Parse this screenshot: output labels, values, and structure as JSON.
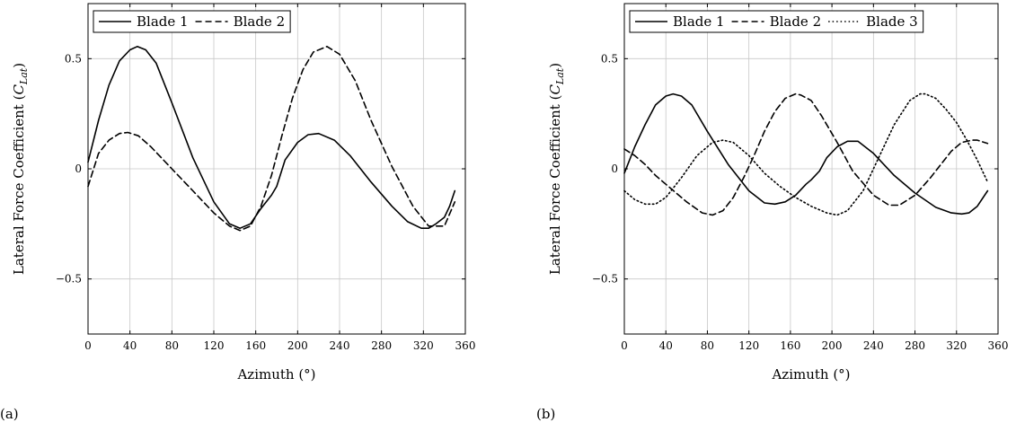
{
  "panels": [
    {
      "label": "(a)"
    },
    {
      "label": "(b)"
    }
  ],
  "chart_data": [
    {
      "type": "line",
      "xlabel": "Azimuth (°)",
      "ylabel": "Lateral Force Coefficient (",
      "ylabel_symbol": "C",
      "ylabel_subscript": "Lat",
      "ylabel_suffix": ")",
      "xlim": [
        0,
        360
      ],
      "ylim": [
        -0.75,
        0.75
      ],
      "xticks": [
        0,
        40,
        80,
        120,
        160,
        200,
        240,
        280,
        320,
        360
      ],
      "yticks": [
        -0.5,
        0,
        0.5
      ],
      "ytick_labels": [
        "−0.5",
        "0",
        "0.5"
      ],
      "grid": true,
      "legend_position": "top-left",
      "series": [
        {
          "name": "Blade 1",
          "style": "solid",
          "x": [
            0,
            10,
            20,
            30,
            40,
            47,
            55,
            65,
            80,
            100,
            120,
            135,
            145,
            155,
            165,
            175,
            180,
            188,
            200,
            210,
            220,
            235,
            250,
            270,
            290,
            305,
            318,
            325,
            332,
            340,
            345,
            350
          ],
          "y": [
            0.03,
            0.22,
            0.38,
            0.49,
            0.54,
            0.555,
            0.54,
            0.48,
            0.3,
            0.05,
            -0.15,
            -0.25,
            -0.27,
            -0.25,
            -0.18,
            -0.12,
            -0.08,
            0.04,
            0.12,
            0.155,
            0.16,
            0.13,
            0.06,
            -0.06,
            -0.17,
            -0.24,
            -0.27,
            -0.27,
            -0.25,
            -0.22,
            -0.17,
            -0.1
          ]
        },
        {
          "name": "Blade 2",
          "style": "dashed",
          "x": [
            0,
            10,
            20,
            30,
            38,
            48,
            60,
            80,
            100,
            120,
            135,
            145,
            155,
            165,
            175,
            185,
            195,
            205,
            215,
            228,
            240,
            255,
            270,
            290,
            310,
            325,
            340,
            350
          ],
          "y": [
            -0.08,
            0.07,
            0.13,
            0.16,
            0.165,
            0.15,
            0.1,
            0.0,
            -0.1,
            -0.2,
            -0.26,
            -0.28,
            -0.26,
            -0.17,
            -0.03,
            0.15,
            0.32,
            0.45,
            0.53,
            0.555,
            0.52,
            0.4,
            0.22,
            0.01,
            -0.17,
            -0.26,
            -0.26,
            -0.15
          ]
        }
      ]
    },
    {
      "type": "line",
      "xlabel": "Azimuth (°)",
      "ylabel": "Lateral Force Coefficient (",
      "ylabel_symbol": "C",
      "ylabel_subscript": "Lat",
      "ylabel_suffix": ")",
      "xlim": [
        0,
        360
      ],
      "ylim": [
        -0.75,
        0.75
      ],
      "xticks": [
        0,
        40,
        80,
        120,
        160,
        200,
        240,
        280,
        320,
        360
      ],
      "yticks": [
        -0.5,
        0,
        0.5
      ],
      "ytick_labels": [
        "−0.5",
        "0",
        "0.5"
      ],
      "grid": true,
      "legend_position": "top",
      "series": [
        {
          "name": "Blade 1",
          "style": "solid",
          "x": [
            0,
            10,
            20,
            30,
            40,
            47,
            55,
            65,
            80,
            100,
            120,
            135,
            145,
            155,
            165,
            175,
            180,
            188,
            195,
            205,
            215,
            225,
            240,
            260,
            280,
            300,
            315,
            325,
            332,
            340,
            350
          ],
          "y": [
            -0.02,
            0.1,
            0.2,
            0.29,
            0.33,
            0.34,
            0.33,
            0.29,
            0.17,
            0.02,
            -0.1,
            -0.155,
            -0.16,
            -0.15,
            -0.12,
            -0.07,
            -0.05,
            -0.01,
            0.05,
            0.1,
            0.125,
            0.125,
            0.07,
            -0.03,
            -0.11,
            -0.175,
            -0.2,
            -0.205,
            -0.2,
            -0.17,
            -0.1
          ]
        },
        {
          "name": "Blade 2",
          "style": "dashed",
          "x": [
            0,
            10,
            20,
            30,
            40,
            60,
            75,
            85,
            95,
            105,
            115,
            125,
            135,
            145,
            155,
            165,
            170,
            180,
            190,
            205,
            220,
            240,
            255,
            265,
            280,
            295,
            305,
            315,
            325,
            335,
            340,
            350
          ],
          "y": [
            0.09,
            0.06,
            0.02,
            -0.03,
            -0.07,
            -0.15,
            -0.2,
            -0.21,
            -0.19,
            -0.13,
            -0.04,
            0.06,
            0.17,
            0.26,
            0.32,
            0.34,
            0.335,
            0.31,
            0.24,
            0.12,
            -0.01,
            -0.12,
            -0.165,
            -0.165,
            -0.12,
            -0.04,
            0.02,
            0.08,
            0.12,
            0.13,
            0.13,
            0.115
          ]
        },
        {
          "name": "Blade 3",
          "style": "dotted",
          "x": [
            0,
            10,
            20,
            30,
            40,
            55,
            70,
            85,
            95,
            105,
            120,
            135,
            150,
            165,
            180,
            195,
            205,
            215,
            230,
            245,
            260,
            275,
            285,
            290,
            300,
            310,
            320,
            330,
            340,
            350
          ],
          "y": [
            -0.1,
            -0.14,
            -0.16,
            -0.16,
            -0.13,
            -0.04,
            0.06,
            0.12,
            0.13,
            0.12,
            0.06,
            -0.02,
            -0.08,
            -0.13,
            -0.17,
            -0.2,
            -0.21,
            -0.19,
            -0.1,
            0.05,
            0.2,
            0.31,
            0.34,
            0.34,
            0.32,
            0.27,
            0.21,
            0.13,
            0.04,
            -0.06
          ]
        }
      ]
    }
  ]
}
